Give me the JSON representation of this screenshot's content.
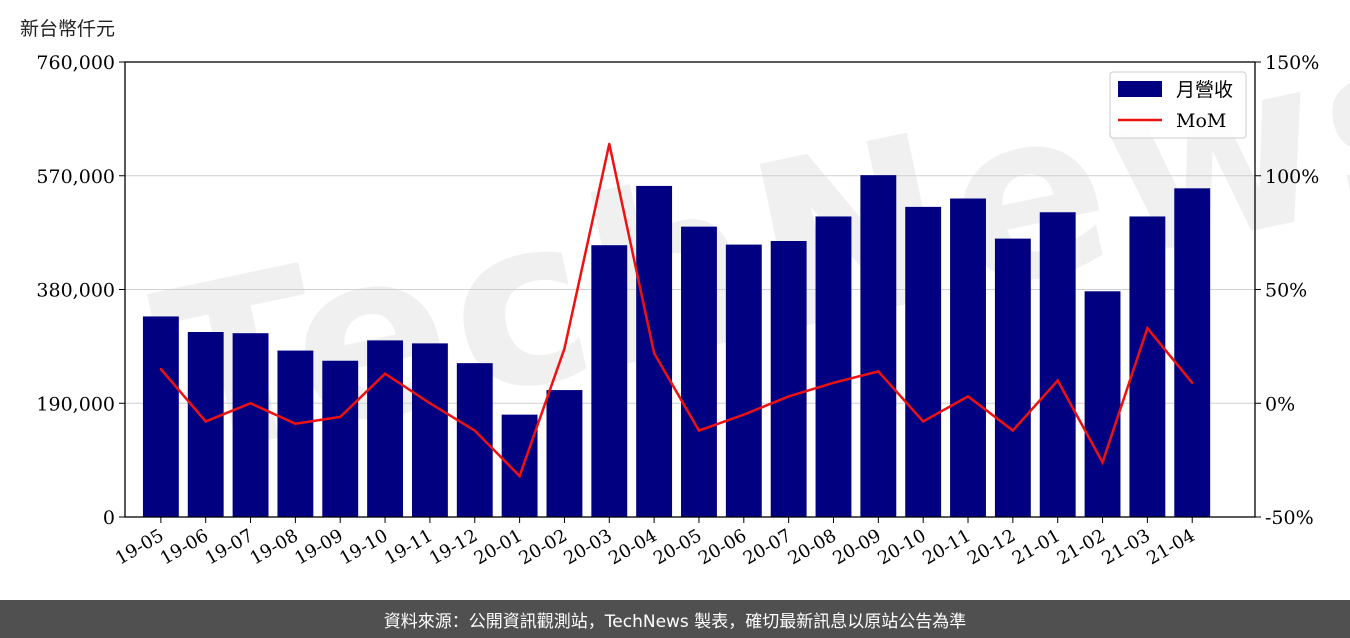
{
  "unit_label": "新台幣仟元",
  "footer_text": "資料來源：公開資訊觀測站，TechNews 製表，確切最新訊息以原站公告為準",
  "watermark_text": "TechNews",
  "colors": {
    "bar": "#000080",
    "line": "#ee1111",
    "grid": "#d0d0d0",
    "footer_bg": "#505050"
  },
  "chart_data": {
    "type": "bar",
    "categories": [
      "19-05",
      "19-06",
      "19-07",
      "19-08",
      "19-09",
      "19-10",
      "19-11",
      "19-12",
      "20-01",
      "20-02",
      "20-03",
      "20-04",
      "20-05",
      "20-06",
      "20-07",
      "20-08",
      "20-09",
      "20-10",
      "20-11",
      "20-12",
      "21-01",
      "21-02",
      "21-03",
      "21-04"
    ],
    "series": [
      {
        "name": "月營收",
        "type": "bar",
        "axis": "left",
        "values": [
          335000,
          309000,
          307000,
          278000,
          261000,
          295000,
          290000,
          257000,
          171000,
          212000,
          454000,
          553000,
          485000,
          455000,
          461000,
          502000,
          571000,
          518000,
          532000,
          465000,
          509000,
          377000,
          502000,
          549000
        ]
      },
      {
        "name": "MoM",
        "type": "line",
        "axis": "right",
        "values": [
          15,
          -8,
          0,
          -9,
          -6,
          13,
          0,
          -12,
          -32,
          24,
          114,
          22,
          -12,
          -5,
          3,
          9,
          14,
          -8,
          3,
          -12,
          10,
          -26,
          33,
          9
        ]
      }
    ],
    "left_axis": {
      "ylim": [
        0,
        760000
      ],
      "ticks": [
        0,
        190000,
        380000,
        570000,
        760000
      ],
      "tick_labels": [
        "0",
        "190,000",
        "380,000",
        "570,000",
        "760,000"
      ]
    },
    "right_axis": {
      "ylim": [
        -50,
        150
      ],
      "ticks": [
        -50,
        0,
        50,
        100,
        150
      ],
      "tick_labels": [
        "-50%",
        "0%",
        "50%",
        "100%",
        "150%"
      ]
    },
    "legend_position": "top-right",
    "grid": true
  }
}
